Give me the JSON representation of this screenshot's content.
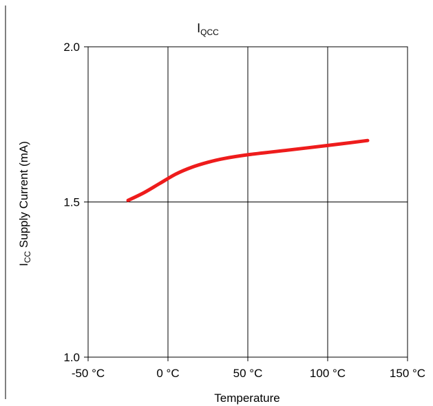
{
  "chart_data": {
    "type": "line",
    "title": {
      "main": "I",
      "sub": "QCC"
    },
    "ylabel": {
      "main": "I",
      "sub": "CC",
      "rest": " Supply Current (mA)"
    },
    "xlabel": "Temperature",
    "xlim": [
      -50,
      150
    ],
    "ylim": [
      1.0,
      2.0
    ],
    "x_ticks": [
      -50,
      0,
      50,
      100,
      150
    ],
    "x_tick_labels": [
      "-50 °C",
      "0 °C",
      "50 °C",
      "100 °C",
      "150 °C"
    ],
    "y_ticks": [
      1.0,
      1.5,
      2.0
    ],
    "y_tick_labels": [
      "1.0",
      "1.5",
      "2.0"
    ],
    "grid": true,
    "series": [
      {
        "color": "#ee1c1c",
        "x": [
          -25,
          -15,
          -5,
          5,
          15,
          25,
          35,
          50,
          75,
          100,
          125
        ],
        "y": [
          1.505,
          1.53,
          1.56,
          1.59,
          1.612,
          1.628,
          1.64,
          1.652,
          1.667,
          1.682,
          1.698
        ]
      }
    ]
  },
  "colors": {
    "frame_line": "#000000",
    "grid": "#000000",
    "series": "#ee1c1c"
  }
}
